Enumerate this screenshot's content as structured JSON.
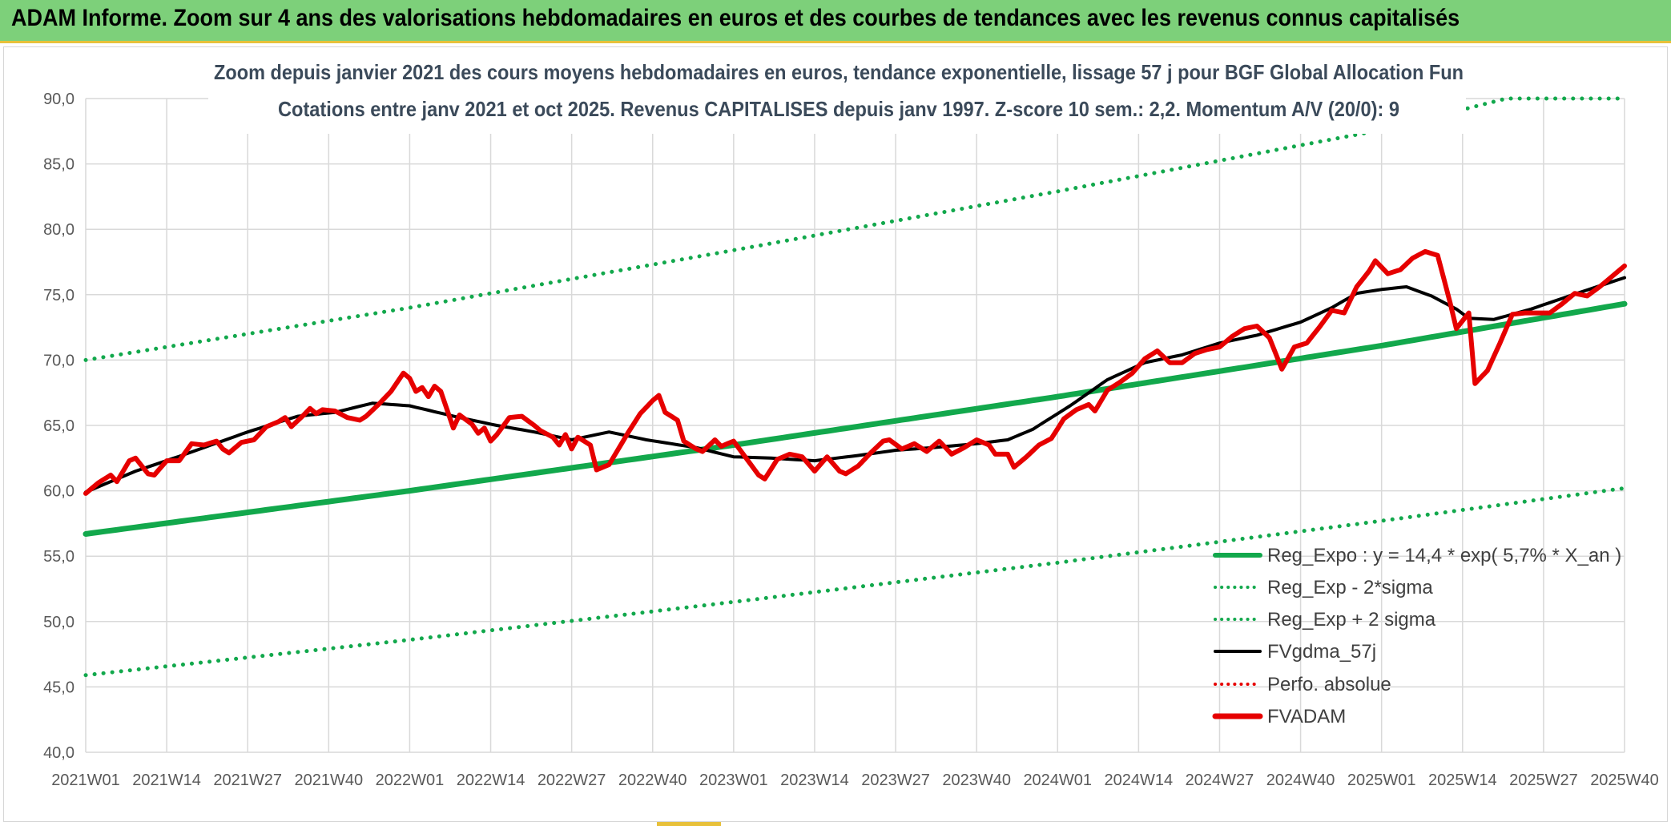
{
  "header": {
    "title": "ADAM Informe. Zoom sur 4 ans des valorisations hebdomadaires en euros et des courbes de tendances avec les revenus connus capitalisés"
  },
  "colors": {
    "header_bg": "#7dd07a",
    "green": "#12a84c",
    "black": "#000000",
    "red": "#e60000",
    "grid": "#d9d9d9"
  },
  "chart_data": {
    "type": "line",
    "title": [
      "Zoom depuis janvier 2021 des cours moyens hebdomadaires en euros, tendance exponentielle, lissage 57 j pour BGF Global Allocation Fun",
      "Cotations entre janv 2021 et oct 2025. Revenus CAPITALISES depuis janv 1997. Z-score 10 sem.: 2,2. Momentum A/V (20/0): 9"
    ],
    "xlabel": "",
    "ylabel": "",
    "ylim": [
      40,
      90
    ],
    "yticks": [
      "40,0",
      "45,0",
      "50,0",
      "55,0",
      "60,0",
      "65,0",
      "70,0",
      "75,0",
      "80,0",
      "85,0",
      "90,0"
    ],
    "x_tick_labels": [
      "2021W01",
      "2021W14",
      "2021W27",
      "2021W40",
      "2022W01",
      "2022W14",
      "2022W27",
      "2022W40",
      "2023W01",
      "2023W14",
      "2023W27",
      "2023W40",
      "2024W01",
      "2024W14",
      "2024W27",
      "2024W40",
      "2025W01",
      "2025W14",
      "2025W27",
      "2025W40"
    ],
    "x_tick_index": [
      0,
      13,
      26,
      39,
      52,
      65,
      78,
      91,
      104,
      117,
      130,
      143,
      156,
      169,
      182,
      195,
      208,
      221,
      234,
      247
    ],
    "legend": [
      {
        "name": "Reg_Expo : y = 14,4 * exp( 5,7% *  X_an )",
        "color": "#12a84c",
        "style": "solid"
      },
      {
        "name": "Reg_Exp - 2*sigma",
        "color": "#12a84c",
        "style": "dotted"
      },
      {
        "name": "Reg_Exp + 2 sigma",
        "color": "#12a84c",
        "style": "dotted"
      },
      {
        "name": "FVgdma_57j",
        "color": "#000000",
        "style": "solid"
      },
      {
        "name": "Perfo. absolue",
        "color": "#e60000",
        "style": "dotted"
      },
      {
        "name": "FVADAM",
        "color": "#e60000",
        "style": "solid"
      }
    ],
    "series": [
      {
        "name": "Reg_Expo",
        "anchors": [
          [
            0,
            56.7
          ],
          [
            52,
            60.0
          ],
          [
            104,
            63.5
          ],
          [
            156,
            67.2
          ],
          [
            208,
            71.1
          ],
          [
            247,
            74.3
          ]
        ]
      },
      {
        "name": "Reg_Exp - 2*sigma",
        "anchors": [
          [
            0,
            45.9
          ],
          [
            52,
            48.6
          ],
          [
            104,
            51.5
          ],
          [
            156,
            54.5
          ],
          [
            208,
            57.7
          ],
          [
            247,
            60.2
          ]
        ]
      },
      {
        "name": "Reg_Exp + 2 sigma",
        "anchors": [
          [
            0,
            70.0
          ],
          [
            52,
            74.0
          ],
          [
            104,
            78.4
          ],
          [
            156,
            82.9
          ],
          [
            208,
            87.6
          ],
          [
            214,
            88.3
          ],
          [
            228,
            90.0
          ],
          [
            247,
            90.0
          ]
        ]
      },
      {
        "name": "FVgdma_57j",
        "anchors": [
          [
            0,
            59.9
          ],
          [
            8,
            61.5
          ],
          [
            16,
            62.8
          ],
          [
            26,
            64.5
          ],
          [
            34,
            65.7
          ],
          [
            40,
            66.0
          ],
          [
            46,
            66.7
          ],
          [
            52,
            66.5
          ],
          [
            60,
            65.6
          ],
          [
            66,
            65.0
          ],
          [
            72,
            64.5
          ],
          [
            78,
            63.9
          ],
          [
            84,
            64.5
          ],
          [
            90,
            63.9
          ],
          [
            98,
            63.3
          ],
          [
            104,
            62.6
          ],
          [
            110,
            62.5
          ],
          [
            117,
            62.3
          ],
          [
            124,
            62.7
          ],
          [
            130,
            63.1
          ],
          [
            136,
            63.3
          ],
          [
            143,
            63.6
          ],
          [
            148,
            63.9
          ],
          [
            152,
            64.7
          ],
          [
            158,
            66.5
          ],
          [
            164,
            68.5
          ],
          [
            170,
            69.8
          ],
          [
            176,
            70.4
          ],
          [
            182,
            71.3
          ],
          [
            188,
            71.9
          ],
          [
            195,
            72.9
          ],
          [
            200,
            74.0
          ],
          [
            204,
            75.1
          ],
          [
            208,
            75.4
          ],
          [
            212,
            75.6
          ],
          [
            216,
            74.9
          ],
          [
            220,
            73.9
          ],
          [
            222,
            73.2
          ],
          [
            226,
            73.1
          ],
          [
            232,
            73.9
          ],
          [
            240,
            75.2
          ],
          [
            247,
            76.3
          ]
        ]
      },
      {
        "name": "FVADAM",
        "anchors": [
          [
            0,
            59.8
          ],
          [
            2,
            60.6
          ],
          [
            4,
            61.2
          ],
          [
            5,
            60.7
          ],
          [
            7,
            62.3
          ],
          [
            8,
            62.5
          ],
          [
            10,
            61.3
          ],
          [
            11,
            61.2
          ],
          [
            13,
            62.3
          ],
          [
            15,
            62.3
          ],
          [
            17,
            63.6
          ],
          [
            19,
            63.5
          ],
          [
            21,
            63.8
          ],
          [
            22,
            63.2
          ],
          [
            23,
            62.9
          ],
          [
            25,
            63.7
          ],
          [
            27,
            63.9
          ],
          [
            29,
            64.9
          ],
          [
            31,
            65.3
          ],
          [
            32,
            65.6
          ],
          [
            33,
            64.9
          ],
          [
            35,
            65.8
          ],
          [
            36,
            66.3
          ],
          [
            37,
            65.9
          ],
          [
            38,
            66.2
          ],
          [
            40,
            66.1
          ],
          [
            42,
            65.6
          ],
          [
            44,
            65.4
          ],
          [
            45,
            65.7
          ],
          [
            47,
            66.6
          ],
          [
            49,
            67.6
          ],
          [
            51,
            69.0
          ],
          [
            52,
            68.6
          ],
          [
            53,
            67.6
          ],
          [
            54,
            67.9
          ],
          [
            55,
            67.2
          ],
          [
            56,
            68.0
          ],
          [
            57,
            67.6
          ],
          [
            58,
            66.2
          ],
          [
            59,
            64.8
          ],
          [
            60,
            65.8
          ],
          [
            62,
            65.1
          ],
          [
            63,
            64.4
          ],
          [
            64,
            64.8
          ],
          [
            65,
            63.8
          ],
          [
            66,
            64.3
          ],
          [
            68,
            65.6
          ],
          [
            70,
            65.7
          ],
          [
            72,
            65.0
          ],
          [
            73,
            64.6
          ],
          [
            75,
            64.1
          ],
          [
            76,
            63.5
          ],
          [
            77,
            64.3
          ],
          [
            78,
            63.2
          ],
          [
            79,
            64.1
          ],
          [
            81,
            63.5
          ],
          [
            82,
            61.6
          ],
          [
            84,
            62.0
          ],
          [
            87,
            64.4
          ],
          [
            89,
            65.9
          ],
          [
            91,
            66.9
          ],
          [
            92,
            67.3
          ],
          [
            93,
            66.0
          ],
          [
            95,
            65.4
          ],
          [
            96,
            63.8
          ],
          [
            98,
            63.2
          ],
          [
            99,
            63.0
          ],
          [
            101,
            63.9
          ],
          [
            102,
            63.4
          ],
          [
            104,
            63.8
          ],
          [
            106,
            62.5
          ],
          [
            108,
            61.2
          ],
          [
            109,
            60.9
          ],
          [
            111,
            62.4
          ],
          [
            113,
            62.8
          ],
          [
            115,
            62.6
          ],
          [
            117,
            61.5
          ],
          [
            119,
            62.6
          ],
          [
            121,
            61.5
          ],
          [
            122,
            61.3
          ],
          [
            124,
            61.9
          ],
          [
            126,
            62.9
          ],
          [
            128,
            63.8
          ],
          [
            129,
            63.9
          ],
          [
            131,
            63.2
          ],
          [
            133,
            63.6
          ],
          [
            135,
            63.0
          ],
          [
            137,
            63.8
          ],
          [
            139,
            62.8
          ],
          [
            141,
            63.3
          ],
          [
            143,
            63.9
          ],
          [
            145,
            63.5
          ],
          [
            146,
            62.8
          ],
          [
            148,
            62.8
          ],
          [
            149,
            61.8
          ],
          [
            151,
            62.6
          ],
          [
            153,
            63.5
          ],
          [
            155,
            64.0
          ],
          [
            157,
            65.5
          ],
          [
            159,
            66.2
          ],
          [
            161,
            66.6
          ],
          [
            162,
            66.1
          ],
          [
            164,
            67.7
          ],
          [
            166,
            68.3
          ],
          [
            168,
            69.0
          ],
          [
            170,
            70.1
          ],
          [
            172,
            70.7
          ],
          [
            174,
            69.8
          ],
          [
            176,
            69.8
          ],
          [
            178,
            70.5
          ],
          [
            180,
            70.8
          ],
          [
            182,
            71.0
          ],
          [
            184,
            71.8
          ],
          [
            186,
            72.4
          ],
          [
            188,
            72.6
          ],
          [
            190,
            71.7
          ],
          [
            192,
            69.3
          ],
          [
            194,
            71.0
          ],
          [
            196,
            71.3
          ],
          [
            198,
            72.5
          ],
          [
            200,
            73.8
          ],
          [
            202,
            73.6
          ],
          [
            204,
            75.6
          ],
          [
            206,
            76.8
          ],
          [
            207,
            77.6
          ],
          [
            209,
            76.6
          ],
          [
            211,
            76.9
          ],
          [
            213,
            77.8
          ],
          [
            215,
            78.3
          ],
          [
            217,
            78.0
          ],
          [
            219,
            74.4
          ],
          [
            220,
            72.4
          ],
          [
            222,
            73.6
          ],
          [
            223,
            68.2
          ],
          [
            225,
            69.2
          ],
          [
            227,
            71.3
          ],
          [
            229,
            73.5
          ],
          [
            231,
            73.6
          ],
          [
            233,
            73.6
          ],
          [
            235,
            73.6
          ],
          [
            237,
            74.3
          ],
          [
            239,
            75.1
          ],
          [
            241,
            74.9
          ],
          [
            243,
            75.6
          ],
          [
            245,
            76.4
          ],
          [
            247,
            77.2
          ]
        ]
      }
    ]
  }
}
